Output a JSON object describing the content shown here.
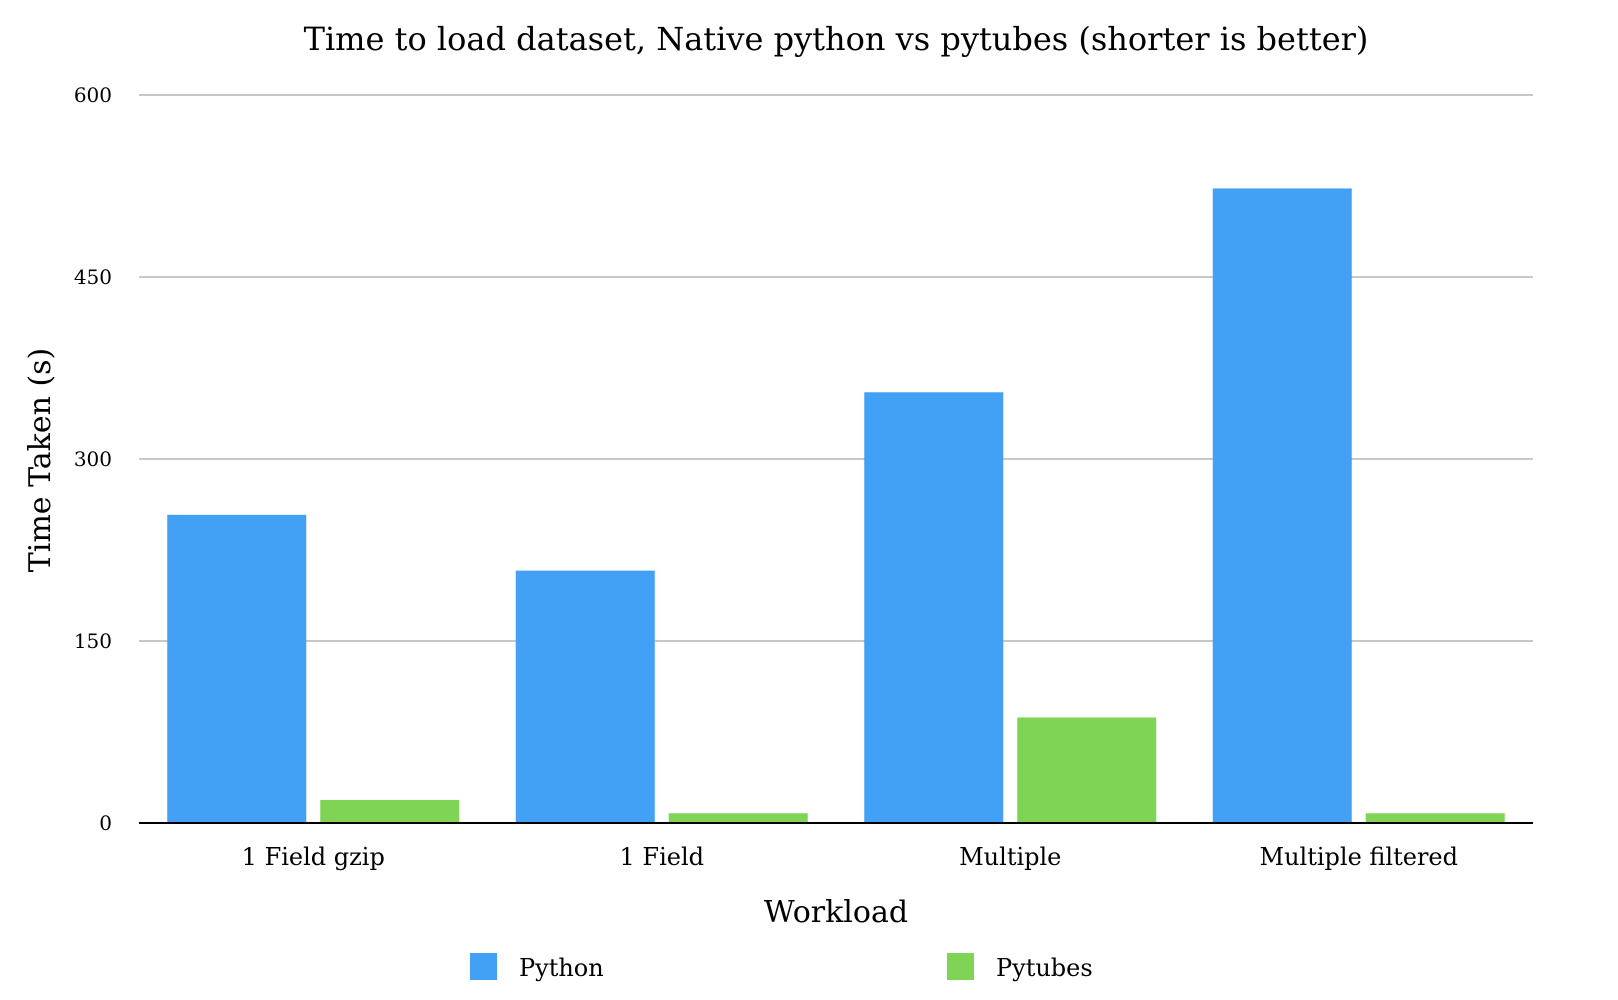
{
  "chart_data": {
    "type": "bar",
    "title": "Time to load dataset, Native python vs pytubes (shorter is better)",
    "xlabel": "Workload",
    "ylabel": "Time Taken (s)",
    "categories": [
      "1 Field gzip",
      "1 Field",
      "Multiple",
      "Multiple filtered"
    ],
    "series": [
      {
        "name": "Python",
        "color": "#42a0f5",
        "values": [
          254,
          208,
          355,
          523
        ]
      },
      {
        "name": "Pytubes",
        "color": "#80d455",
        "values": [
          19,
          8,
          87,
          8
        ]
      }
    ],
    "ylim": [
      0,
      600
    ],
    "yticks": [
      "0",
      "150",
      "300",
      "450",
      "600"
    ],
    "grid": true,
    "legend_position": "bottom"
  }
}
